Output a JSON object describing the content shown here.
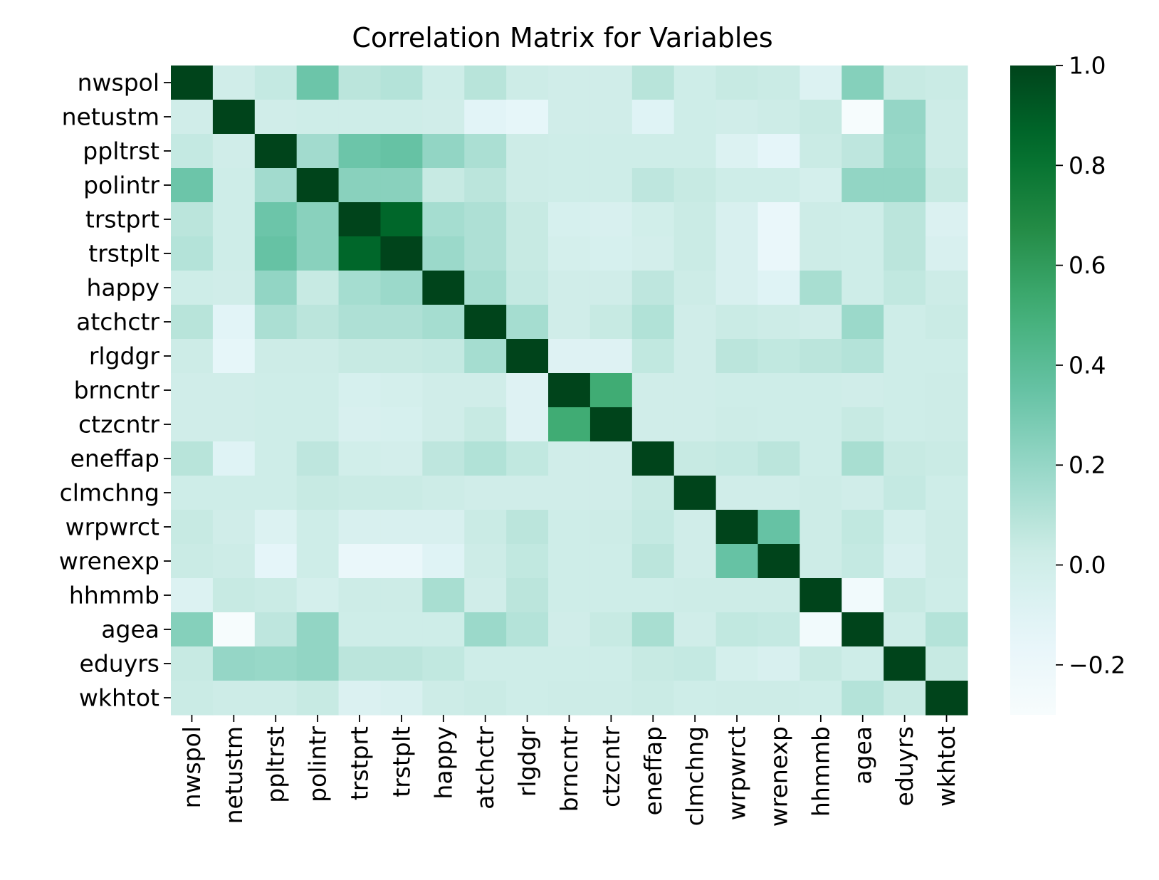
{
  "chart_data": {
    "type": "heatmap",
    "title": "Correlation Matrix for Variables",
    "xlabel": "",
    "ylabel": "",
    "variables": [
      "nwspol",
      "netustm",
      "ppltrst",
      "polintr",
      "trstprt",
      "trstplt",
      "happy",
      "atchctr",
      "rlgdgr",
      "brncntr",
      "ctzcntr",
      "eneffap",
      "clmchng",
      "wrpwrct",
      "wrenexp",
      "hhmmb",
      "agea",
      "eduyrs",
      "wkhtot"
    ],
    "matrix": [
      [
        1.0,
        0.0,
        0.05,
        0.33,
        0.08,
        0.1,
        0.01,
        0.09,
        0.02,
        0.0,
        0.0,
        0.09,
        0.01,
        0.04,
        0.03,
        -0.08,
        0.25,
        0.04,
        0.03
      ],
      [
        0.0,
        1.0,
        0.0,
        0.01,
        0.01,
        0.01,
        0.0,
        -0.12,
        -0.15,
        0.0,
        0.0,
        -0.1,
        0.01,
        0.0,
        0.02,
        0.04,
        -0.29,
        0.2,
        0.02
      ],
      [
        0.05,
        0.0,
        1.0,
        0.16,
        0.33,
        0.35,
        0.21,
        0.13,
        0.02,
        0.01,
        0.01,
        0.01,
        0.01,
        -0.08,
        -0.14,
        0.03,
        0.07,
        0.19,
        0.02
      ],
      [
        0.33,
        0.01,
        0.16,
        1.0,
        0.24,
        0.24,
        0.04,
        0.08,
        0.02,
        0.01,
        0.01,
        0.07,
        0.04,
        0.01,
        0.01,
        -0.03,
        0.21,
        0.21,
        0.04
      ],
      [
        0.08,
        0.01,
        0.33,
        0.24,
        1.0,
        0.86,
        0.15,
        0.12,
        0.04,
        -0.04,
        -0.05,
        -0.01,
        0.03,
        -0.05,
        -0.18,
        0.02,
        0.01,
        0.08,
        -0.07
      ],
      [
        0.1,
        0.01,
        0.35,
        0.24,
        0.86,
        1.0,
        0.18,
        0.12,
        0.04,
        -0.03,
        -0.04,
        -0.02,
        0.03,
        -0.05,
        -0.18,
        0.02,
        0.01,
        0.08,
        -0.05
      ],
      [
        0.01,
        0.0,
        0.21,
        0.04,
        0.15,
        0.18,
        1.0,
        0.15,
        0.05,
        0.0,
        0.0,
        0.07,
        0.02,
        -0.05,
        -0.1,
        0.14,
        0.01,
        0.06,
        0.02
      ],
      [
        0.09,
        -0.12,
        0.13,
        0.08,
        0.12,
        0.12,
        0.15,
        1.0,
        0.15,
        0.0,
        0.04,
        0.11,
        0.0,
        0.03,
        0.02,
        0.0,
        0.18,
        0.01,
        0.03
      ],
      [
        0.02,
        -0.15,
        0.02,
        0.02,
        0.04,
        0.04,
        0.05,
        0.15,
        1.0,
        -0.09,
        -0.09,
        0.06,
        0.0,
        0.08,
        0.06,
        0.08,
        0.1,
        0.01,
        0.01
      ],
      [
        0.0,
        0.0,
        0.01,
        0.01,
        -0.04,
        -0.03,
        0.0,
        0.0,
        -0.09,
        1.0,
        0.52,
        0.0,
        0.0,
        0.01,
        0.01,
        0.01,
        0.0,
        0.01,
        0.02
      ],
      [
        0.0,
        0.0,
        0.01,
        0.01,
        -0.05,
        -0.04,
        0.0,
        0.04,
        -0.09,
        0.52,
        1.0,
        0.0,
        0.0,
        0.02,
        0.01,
        0.01,
        0.04,
        0.01,
        0.02
      ],
      [
        0.09,
        -0.1,
        0.01,
        0.07,
        -0.01,
        -0.02,
        0.07,
        0.11,
        0.06,
        0.0,
        0.0,
        1.0,
        0.04,
        0.05,
        0.08,
        0.01,
        0.14,
        0.04,
        0.03
      ],
      [
        0.01,
        0.01,
        0.01,
        0.04,
        0.03,
        0.03,
        0.02,
        0.0,
        0.0,
        0.0,
        0.0,
        0.04,
        1.0,
        0.0,
        0.0,
        0.02,
        0.0,
        0.05,
        0.01
      ],
      [
        0.04,
        0.0,
        -0.08,
        0.01,
        -0.05,
        -0.05,
        -0.05,
        0.03,
        0.08,
        0.01,
        0.02,
        0.05,
        0.0,
        1.0,
        0.35,
        0.02,
        0.06,
        -0.03,
        0.02
      ],
      [
        0.03,
        0.02,
        -0.14,
        0.01,
        -0.18,
        -0.18,
        -0.1,
        0.02,
        0.06,
        0.01,
        0.01,
        0.08,
        0.0,
        0.35,
        1.0,
        0.02,
        0.05,
        -0.05,
        0.02
      ],
      [
        -0.08,
        0.04,
        0.03,
        -0.03,
        0.02,
        0.02,
        0.14,
        0.0,
        0.08,
        0.01,
        0.01,
        0.01,
        0.02,
        0.02,
        0.02,
        1.0,
        -0.25,
        0.04,
        0.01
      ],
      [
        0.25,
        -0.29,
        0.07,
        0.21,
        0.01,
        0.01,
        0.01,
        0.18,
        0.1,
        0.0,
        0.04,
        0.14,
        0.0,
        0.06,
        0.05,
        -0.25,
        1.0,
        0.01,
        0.1
      ],
      [
        0.04,
        0.2,
        0.19,
        0.21,
        0.08,
        0.08,
        0.06,
        0.01,
        0.01,
        0.01,
        0.01,
        0.04,
        0.05,
        -0.03,
        -0.05,
        0.04,
        0.01,
        1.0,
        0.04
      ],
      [
        0.03,
        0.02,
        0.02,
        0.04,
        -0.07,
        -0.05,
        0.02,
        0.03,
        0.01,
        0.02,
        0.02,
        0.03,
        0.01,
        0.02,
        0.02,
        0.01,
        0.1,
        0.04,
        1.0
      ]
    ],
    "vmin": -0.3,
    "vmax": 1.0,
    "colormap": "BuGn",
    "colorbar": {
      "ticks": [
        1.0,
        0.8,
        0.6,
        0.4,
        0.2,
        0.0,
        -0.2
      ],
      "tick_labels": [
        "1.0",
        "0.8",
        "0.6",
        "0.4",
        "0.2",
        "0.0",
        "−0.2"
      ],
      "placement": "right"
    },
    "grid": false
  }
}
